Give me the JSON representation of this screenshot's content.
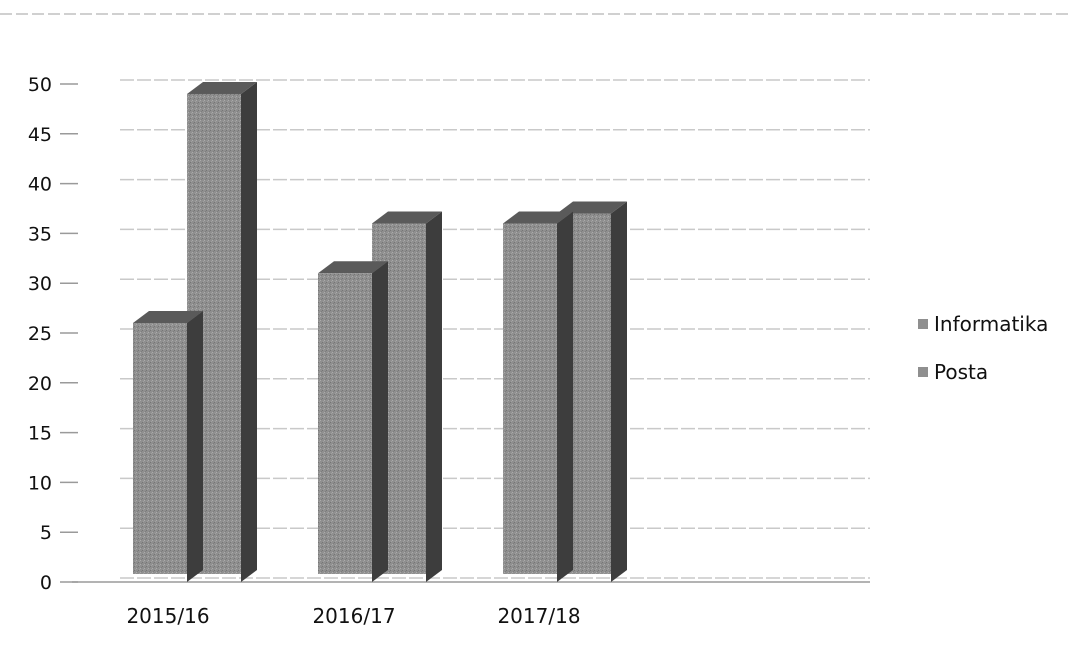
{
  "chart_data": {
    "type": "bar",
    "categories": [
      "2015/16",
      "2016/17",
      "2017/18"
    ],
    "series": [
      {
        "name": "Informatika",
        "values": [
          26,
          31,
          36
        ]
      },
      {
        "name": "Posta",
        "values": [
          49,
          36,
          37
        ]
      }
    ],
    "yticks": [
      "0",
      "5",
      "10",
      "15",
      "20",
      "25",
      "30",
      "35",
      "40",
      "45",
      "50"
    ],
    "ylim": [
      0,
      50
    ],
    "grid": true,
    "legend_position": "right",
    "colors": {
      "front": "#8f8f8f",
      "side": "#3d3d3d",
      "top": "#5a5a5a",
      "grid": "#c9c9c9",
      "axis": "#9a9a9a"
    }
  }
}
